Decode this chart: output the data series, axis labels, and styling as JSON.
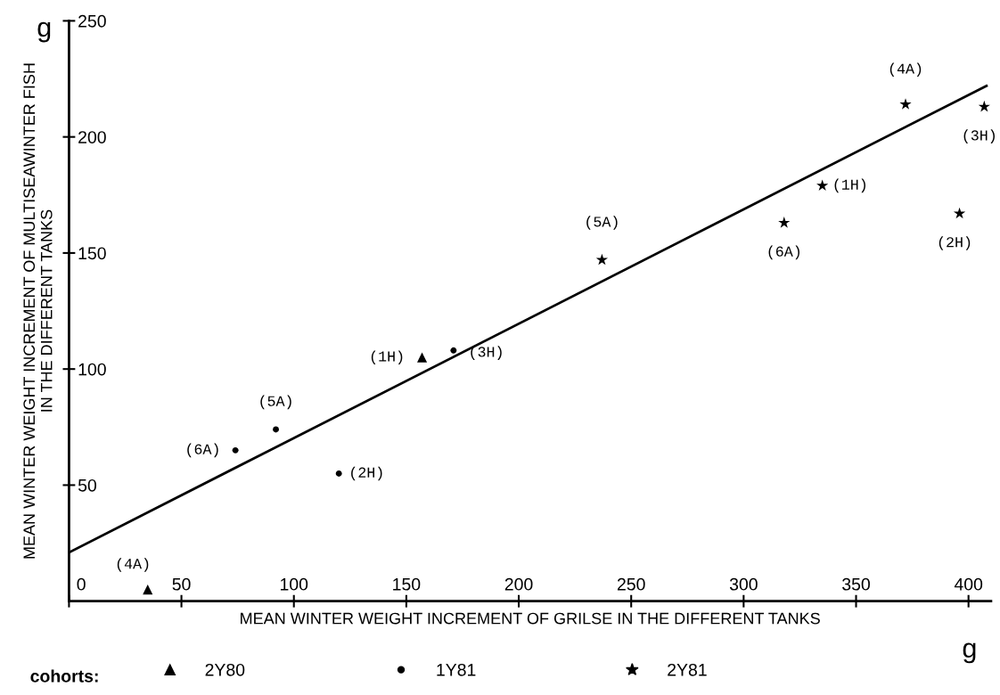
{
  "chart_data": {
    "type": "scatter",
    "xlabel": "MEAN WINTER WEIGHT INCREMENT OF GRILSE IN THE DIFFERENT TANKS",
    "ylabel": "MEAN WINTER WEIGHT INCREMENT OF MULTISEAWINTER FISH\nIN THE DIFFERENT TANKS",
    "legend_title": "cohorts:",
    "series": [
      {
        "name": "2Y80",
        "color": "#000000",
        "marker": "triangle",
        "x": [
          35,
          157
        ],
        "values": [
          5,
          105
        ]
      },
      {
        "name": "1Y81",
        "color": "#000000",
        "marker": "circle",
        "x": [
          74,
          92,
          120,
          171
        ],
        "values": [
          65,
          74,
          55,
          108
        ]
      },
      {
        "name": "2Y81",
        "color": "#000000",
        "marker": "star",
        "x": [
          237,
          318,
          335,
          372,
          407,
          396
        ],
        "values": [
          147,
          163,
          179,
          214,
          213,
          167
        ]
      },
      {
        "type": "line",
        "color": "#000000",
        "marker": "none",
        "line_style": "solid",
        "x": [
          0,
          408
        ],
        "values": [
          21,
          222
        ]
      }
    ],
    "xlim": [
      0,
      410
    ],
    "ylim": [
      0,
      250
    ],
    "xticks": [
      0,
      50,
      100,
      150,
      200,
      250,
      300,
      350,
      400
    ],
    "yticks": [
      50,
      100,
      150,
      200,
      250
    ],
    "grid": false,
    "legend": "bottom",
    "annotations": [
      {
        "text": "(4A)",
        "x": 35,
        "y": 5
      },
      {
        "text": "(1H)",
        "x": 157,
        "y": 105
      },
      {
        "text": "(6A)",
        "x": 74,
        "y": 65
      },
      {
        "text": "(5A)",
        "x": 92,
        "y": 74
      },
      {
        "text": "(2H)",
        "x": 120,
        "y": 55
      },
      {
        "text": "(3H)",
        "x": 171,
        "y": 108
      },
      {
        "text": "(5A)",
        "x": 237,
        "y": 147
      },
      {
        "text": "(6A)",
        "x": 318,
        "y": 163
      },
      {
        "text": "(1H)",
        "x": 335,
        "y": 179
      },
      {
        "text": "(4A)",
        "x": 372,
        "y": 214
      },
      {
        "text": "(3H)",
        "x": 407,
        "y": 213
      },
      {
        "text": "(2H)",
        "x": 396,
        "y": 167
      },
      "g",
      "g"
    ]
  }
}
